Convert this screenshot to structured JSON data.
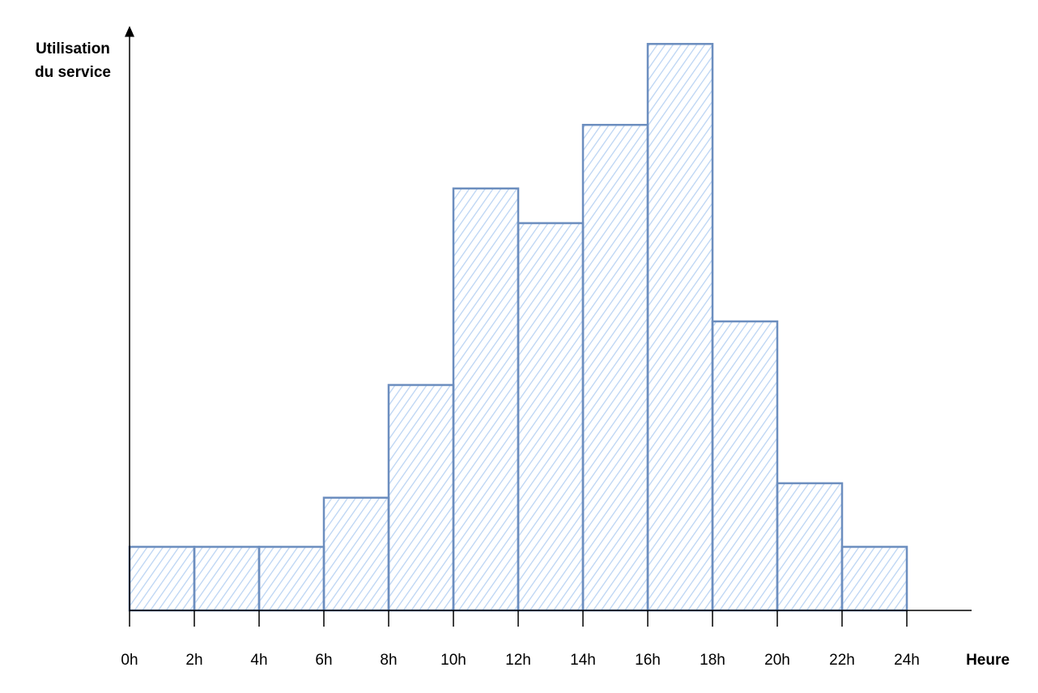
{
  "chart_data": {
    "type": "histogram",
    "y_label": [
      "Utilisation",
      "du service"
    ],
    "x_label": "Heure",
    "bins": [
      0,
      2,
      4,
      6,
      8,
      10,
      12,
      14,
      16,
      18,
      20,
      22,
      24
    ],
    "values": [
      11,
      11,
      11,
      19.5,
      39,
      73,
      67,
      84,
      98,
      50,
      22,
      11
    ],
    "color": "#6c8ebf",
    "fill": "#dae8fc",
    "xlim": [
      0,
      26
    ],
    "ylim": [
      0,
      100
    ],
    "xticks": [
      {
        "value": 0,
        "label": "0h"
      },
      {
        "value": 2,
        "label": "2h"
      },
      {
        "value": 4,
        "label": "4h"
      },
      {
        "value": 6,
        "label": "6h"
      },
      {
        "value": 8,
        "label": "8h"
      },
      {
        "value": 10,
        "label": "10h"
      },
      {
        "value": 12,
        "label": "12h"
      },
      {
        "value": 14,
        "label": "14h"
      },
      {
        "value": 16,
        "label": "16h"
      },
      {
        "value": 18,
        "label": "18h"
      },
      {
        "value": 20,
        "label": "20h"
      },
      {
        "value": 22,
        "label": "22h"
      },
      {
        "value": 24,
        "label": "24h"
      }
    ],
    "grid": false
  }
}
